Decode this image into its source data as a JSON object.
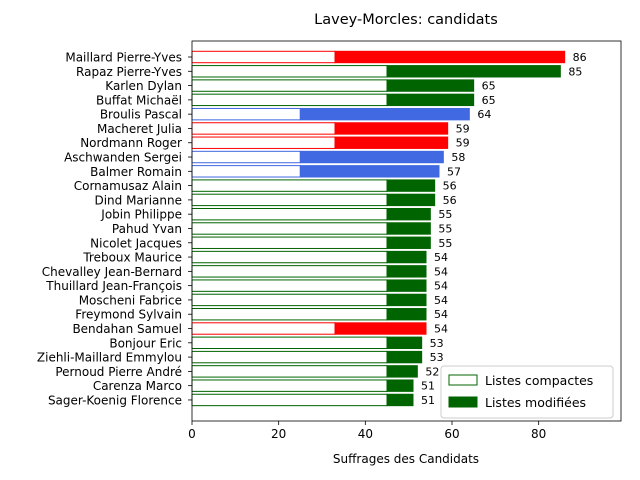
{
  "chart_data": {
    "type": "bar",
    "orientation": "horizontal",
    "stacked": true,
    "title": "Lavey-Morcles: candidats",
    "xlabel": "Suffrages des Candidats",
    "ylabel": "",
    "xlim": [
      0,
      99
    ],
    "xticks": [
      0,
      20,
      40,
      60,
      80
    ],
    "grid": false,
    "legend_position": "lower-right",
    "categories": [
      "Maillard Pierre-Yves",
      "Rapaz Pierre-Yves",
      "Karlen Dylan",
      "Buffat Michaël",
      "Broulis Pascal",
      "Macheret Julia",
      "Nordmann Roger",
      "Aschwanden Sergei",
      "Balmer Romain",
      "Cornamusaz Alain",
      "Dind Marianne",
      "Jobin Philippe",
      "Pahud Yvan",
      "Nicolet Jacques",
      "Treboux Maurice",
      "Chevalley Jean-Bernard",
      "Thuillard Jean-François",
      "Moscheni Fabrice",
      "Freymond Sylvain",
      "Bendahan Samuel",
      "Bonjour Eric",
      "Ziehli-Maillard Emmylou",
      "Pernoud Pierre André",
      "Carenza Marco",
      "Sager-Koenig Florence"
    ],
    "totals": [
      86,
      85,
      65,
      65,
      64,
      59,
      59,
      58,
      57,
      56,
      56,
      55,
      55,
      55,
      54,
      54,
      54,
      54,
      54,
      54,
      53,
      53,
      52,
      51,
      51
    ],
    "series": [
      {
        "name": "Listes compactes",
        "values": [
          33,
          45,
          45,
          45,
          25,
          33,
          33,
          25,
          25,
          45,
          45,
          45,
          45,
          45,
          45,
          45,
          45,
          45,
          45,
          33,
          45,
          45,
          45,
          45,
          45
        ]
      },
      {
        "name": "Listes modifiées",
        "values": [
          53,
          40,
          20,
          20,
          39,
          26,
          26,
          33,
          32,
          11,
          11,
          10,
          10,
          10,
          9,
          9,
          9,
          9,
          9,
          21,
          8,
          8,
          7,
          6,
          6
        ]
      }
    ],
    "bar_colors": [
      "#ff0000",
      "#006400",
      "#006400",
      "#006400",
      "#4169e1",
      "#ff0000",
      "#ff0000",
      "#4169e1",
      "#4169e1",
      "#006400",
      "#006400",
      "#006400",
      "#006400",
      "#006400",
      "#006400",
      "#006400",
      "#006400",
      "#006400",
      "#006400",
      "#ff0000",
      "#006400",
      "#006400",
      "#006400",
      "#006400",
      "#006400"
    ],
    "legend_color": "#006400"
  }
}
